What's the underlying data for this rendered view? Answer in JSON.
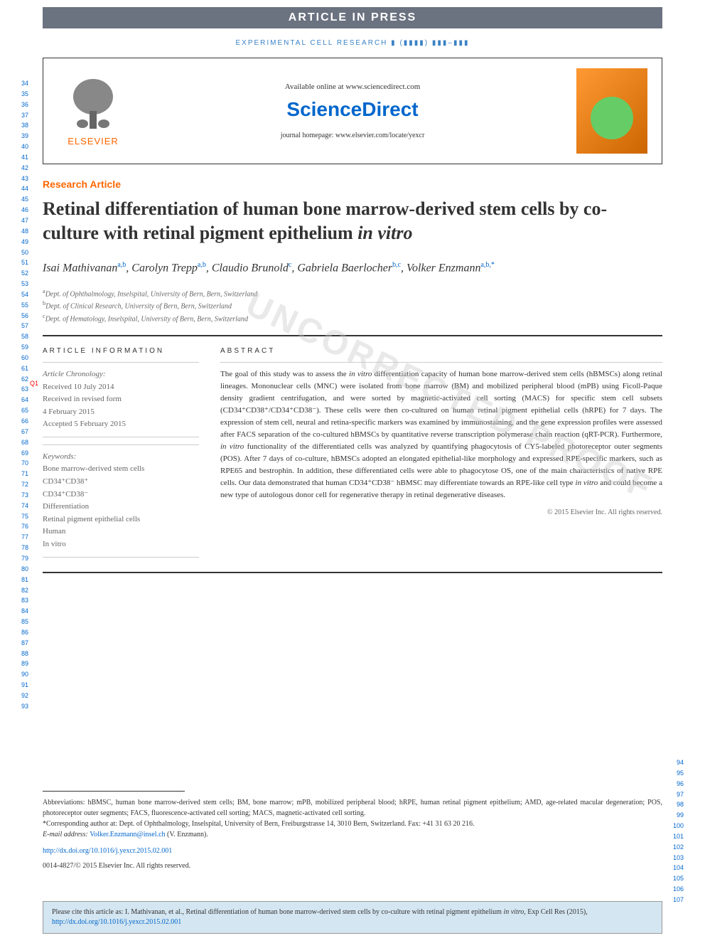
{
  "colors": {
    "orange": "#ff6600",
    "blue": "#0066cc",
    "gray_bar": "#6b7280",
    "text_dark": "#333333",
    "text_gray": "#666666",
    "cite_bg": "#d4e6f1"
  },
  "header": {
    "article_in_press": "ARTICLE IN PRESS",
    "journal_ref": "EXPERIMENTAL CELL RESEARCH ▮ (▮▮▮▮) ▮▮▮–▮▮▮",
    "available_online": "Available online at www.sciencedirect.com",
    "sciencedirect": "ScienceDirect",
    "journal_homepage": "journal homepage: www.elsevier.com/locate/yexcr",
    "elsevier_label": "ELSEVIER"
  },
  "article_type": "Research Article",
  "title_part1": "Retinal differentiation of human bone marrow-derived stem cells by co-culture with retinal pigment epithelium ",
  "title_italic": "in vitro",
  "q1_marker": "Q1",
  "authors_html": "Isai Mathivanan",
  "author_list": [
    {
      "name": "Isai Mathivanan",
      "sup": "a,b"
    },
    {
      "name": "Carolyn Trepp",
      "sup": "a,b"
    },
    {
      "name": "Claudio Brunold",
      "sup": "c"
    },
    {
      "name": "Gabriela Baerlocher",
      "sup": "b,c"
    },
    {
      "name": "Volker Enzmann",
      "sup": "a,b,*"
    }
  ],
  "affiliations": [
    {
      "sup": "a",
      "text": "Dept. of Ophthalmology, Inselspital, University of Bern, Bern, Switzerland"
    },
    {
      "sup": "b",
      "text": "Dept. of Clinical Research, University of Bern, Bern, Switzerland"
    },
    {
      "sup": "c",
      "text": "Dept. of Hematology, Inselspital, University of Bern, Bern, Switzerland"
    }
  ],
  "article_info": {
    "heading": "ARTICLE INFORMATION",
    "chronology_label": "Article Chronology:",
    "received": "Received 10 July 2014",
    "revised_label": "Received in revised form",
    "revised_date": "4 February 2015",
    "accepted": "Accepted 5 February 2015",
    "keywords_label": "Keywords:",
    "keywords": [
      "Bone marrow-derived stem cells",
      "CD34⁺CD38⁺",
      "CD34⁺CD38⁻",
      "Differentiation",
      "Retinal pigment epithelial cells",
      "Human",
      "In vitro"
    ]
  },
  "abstract": {
    "heading": "ABSTRACT",
    "text": "The goal of this study was to assess the in vitro differentiation capacity of human bone marrow-derived stem cells (hBMSCs) along retinal lineages. Mononuclear cells (MNC) were isolated from bone marrow (BM) and mobilized peripheral blood (mPB) using Ficoll-Paque density gradient centrifugation, and were sorted by magnetic-activated cell sorting (MACS) for specific stem cell subsets (CD34⁺CD38⁺/CD34⁺CD38⁻). These cells were then co-cultured on human retinal pigment epithelial cells (hRPE) for 7 days. The expression of stem cell, neural and retina-specific markers was examined by immunostaining, and the gene expression profiles were assessed after FACS separation of the co-cultured hBMSCs by quantitative reverse transcription polymerase chain reaction (qRT-PCR). Furthermore, in vitro functionality of the differentiated cells was analyzed by quantifying phagocytosis of CY5-labeled photoreceptor outer segments (POS). After 7 days of co-culture, hBMSCs adopted an elongated epithelial-like morphology and expressed RPE-specific markers, such as RPE65 and bestrophin. In addition, these differentiated cells were able to phagocytose OS, one of the main characteristics of native RPE cells. Our data demonstrated that human CD34⁺CD38⁻ hBMSC may differentiate towards an RPE-like cell type in vitro and could become a new type of autologous donor cell for regenerative therapy in retinal degenerative diseases.",
    "copyright": "© 2015 Elsevier Inc. All rights reserved."
  },
  "footer": {
    "abbreviations": "Abbreviations: hBMSC, human bone marrow-derived stem cells; BM, bone marrow; mPB, mobilized peripheral blood; hRPE, human retinal pigment epithelium; AMD, age-related macular degeneration; POS, photoreceptor outer segments; FACS, fluorescence-activated cell sorting; MACS, magnetic-activated cell sorting.",
    "corresponding": "*Corresponding author at: Dept. of Ophthalmology, Inselspital, University of Bern, Freiburgstrasse 14, 3010 Bern, Switzerland. Fax: +41 31 63 20 216.",
    "email_label": "E-mail address: ",
    "email": "Volker.Enzmann@insel.ch",
    "email_suffix": " (V. Enzmann).",
    "doi": "http://dx.doi.org/10.1016/j.yexcr.2015.02.001",
    "issn": "0014-4827/© 2015 Elsevier Inc. All rights reserved."
  },
  "cite_box": {
    "text": "Please cite this article as: I. Mathivanan, et al., Retinal differentiation of human bone marrow-derived stem cells by co-culture with retinal pigment epithelium in vitro, Exp Cell Res (2015), ",
    "link": "http://dx.doi.org/10.1016/j.yexcr.2015.02.001"
  },
  "line_numbers": {
    "left_start": 34,
    "left_end": 93,
    "right_start": 94,
    "right_end": 107
  },
  "watermark": "UNCORRECTED PROOF"
}
